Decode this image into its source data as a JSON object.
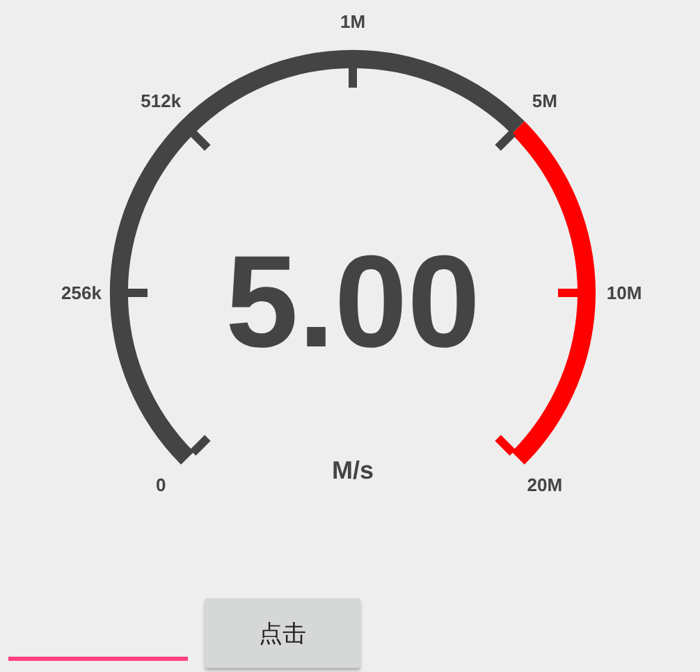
{
  "chart_data": {
    "type": "donut",
    "categories": [
      null,
      null
    ],
    "values": [
      66.67,
      33.33
    ],
    "colors": [
      "#444444",
      "#ff0000"
    ],
    "annotations": [
      "0",
      "256k",
      "512k",
      "1M",
      "5M",
      "10M",
      "20M",
      "5.00",
      "M/s",
      "点击"
    ]
  }
}
